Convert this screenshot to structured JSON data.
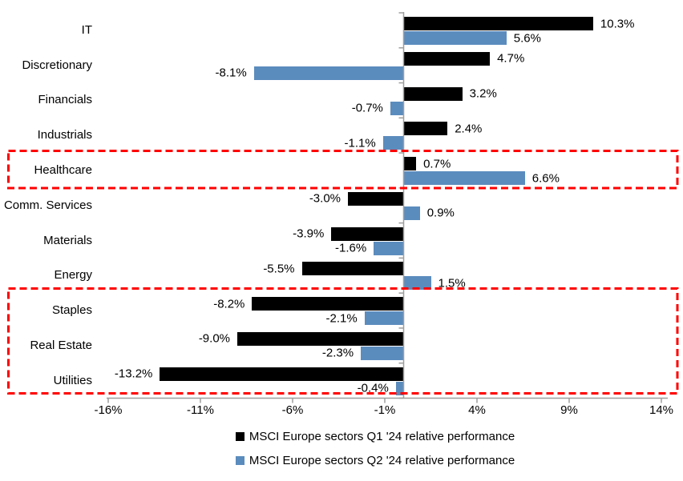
{
  "chart_data": {
    "type": "bar",
    "orientation": "horizontal",
    "categories": [
      "IT",
      "Discretionary",
      "Financials",
      "Industrials",
      "Healthcare",
      "Comm. Services",
      "Materials",
      "Energy",
      "Staples",
      "Real Estate",
      "Utilities"
    ],
    "series": [
      {
        "name": "MSCI Europe sectors Q1 '24 relative performance",
        "color": "#000000",
        "values": [
          10.3,
          4.7,
          3.2,
          2.4,
          0.7,
          -3.0,
          -3.9,
          -5.5,
          -8.2,
          -9.0,
          -13.2
        ],
        "labels": [
          "10.3%",
          "4.7%",
          "3.2%",
          "2.4%",
          "0.7%",
          "-3.0%",
          "-3.9%",
          "-5.5%",
          "-8.2%",
          "-9.0%",
          "-13.2%"
        ]
      },
      {
        "name": "MSCI Europe sectors Q2 '24 relative performance",
        "color": "#5B8CBE",
        "values": [
          5.6,
          -8.1,
          -0.7,
          -1.1,
          6.6,
          0.9,
          -1.6,
          1.5,
          -2.1,
          -2.3,
          -0.4
        ],
        "labels": [
          "5.6%",
          "-8.1%",
          "-0.7%",
          "-1.1%",
          "6.6%",
          "0.9%",
          "-1.6%",
          "1.5%",
          "-2.1%",
          "-2.3%",
          "-0.4%"
        ]
      }
    ],
    "x_axis": {
      "ticks": [
        {
          "value": -16,
          "label": "-16%"
        },
        {
          "value": -11,
          "label": "-11%"
        },
        {
          "value": -6,
          "label": "-6%"
        },
        {
          "value": -1,
          "label": "-1%"
        },
        {
          "value": 4,
          "label": "4%"
        },
        {
          "value": 9,
          "label": "9%"
        },
        {
          "value": 14,
          "label": "14%"
        }
      ],
      "range": [
        -16.1,
        14.35
      ],
      "color": "#9E9E9E"
    },
    "grid": false,
    "legend_position": "bottom-center",
    "highlights": [
      {
        "categories": [
          "Healthcare"
        ],
        "style": "red-dashed-box",
        "color": "#FF0000"
      },
      {
        "categories": [
          "Staples",
          "Real Estate",
          "Utilities"
        ],
        "style": "red-dashed-box",
        "color": "#FF0000"
      }
    ]
  }
}
